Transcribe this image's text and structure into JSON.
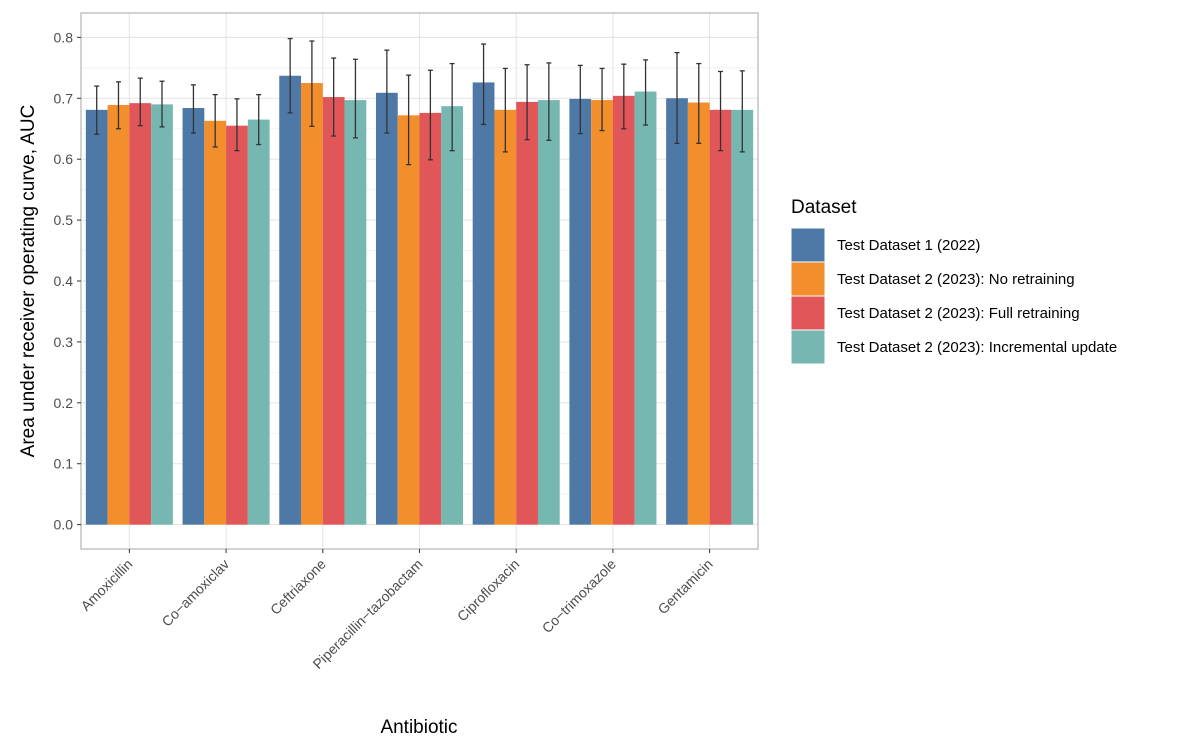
{
  "chart_data": {
    "type": "bar",
    "xlabel": "Antibiotic",
    "ylabel": "Area under receiver operating curve, AUC",
    "ylim": [
      -0.04,
      0.84
    ],
    "yticks": [
      0.0,
      0.1,
      0.2,
      0.3,
      0.4,
      0.5,
      0.6,
      0.7,
      0.8
    ],
    "ytick_labels": [
      "0.0",
      "0.1",
      "0.2",
      "0.3",
      "0.4",
      "0.5",
      "0.6",
      "0.7",
      "0.8"
    ],
    "grid": true,
    "legend": {
      "title": "Dataset",
      "position": "right"
    },
    "categories": [
      "Amoxicillin",
      "Co−amoxiclav",
      "Ceftriaxone",
      "Piperacillin−tazobactam",
      "Ciprofloxacin",
      "Co−trimoxazole",
      "Gentamicin"
    ],
    "series": [
      {
        "name": "Test Dataset 1 (2022)",
        "color": "#4e79a7",
        "values": [
          0.681,
          0.684,
          0.737,
          0.709,
          0.726,
          0.699,
          0.7
        ],
        "lower": [
          0.641,
          0.643,
          0.676,
          0.643,
          0.657,
          0.642,
          0.626
        ],
        "upper": [
          0.72,
          0.722,
          0.798,
          0.779,
          0.789,
          0.754,
          0.775
        ]
      },
      {
        "name": "Test Dataset 2 (2023): No retraining",
        "color": "#f28e2b",
        "values": [
          0.689,
          0.663,
          0.725,
          0.672,
          0.681,
          0.697,
          0.693
        ],
        "lower": [
          0.65,
          0.62,
          0.654,
          0.591,
          0.612,
          0.647,
          0.626
        ],
        "upper": [
          0.727,
          0.706,
          0.794,
          0.738,
          0.749,
          0.749,
          0.757
        ]
      },
      {
        "name": "Test Dataset 2 (2023): Full retraining",
        "color": "#e15759",
        "values": [
          0.692,
          0.655,
          0.702,
          0.676,
          0.694,
          0.704,
          0.681
        ],
        "lower": [
          0.655,
          0.614,
          0.638,
          0.599,
          0.632,
          0.65,
          0.614
        ],
        "upper": [
          0.733,
          0.699,
          0.766,
          0.746,
          0.755,
          0.756,
          0.744
        ]
      },
      {
        "name": "Test Dataset 2 (2023): Incremental update",
        "color": "#76b7b2",
        "values": [
          0.69,
          0.665,
          0.697,
          0.687,
          0.697,
          0.711,
          0.681
        ],
        "lower": [
          0.653,
          0.624,
          0.635,
          0.614,
          0.631,
          0.656,
          0.612
        ],
        "upper": [
          0.728,
          0.706,
          0.764,
          0.757,
          0.758,
          0.763,
          0.745
        ]
      }
    ]
  }
}
